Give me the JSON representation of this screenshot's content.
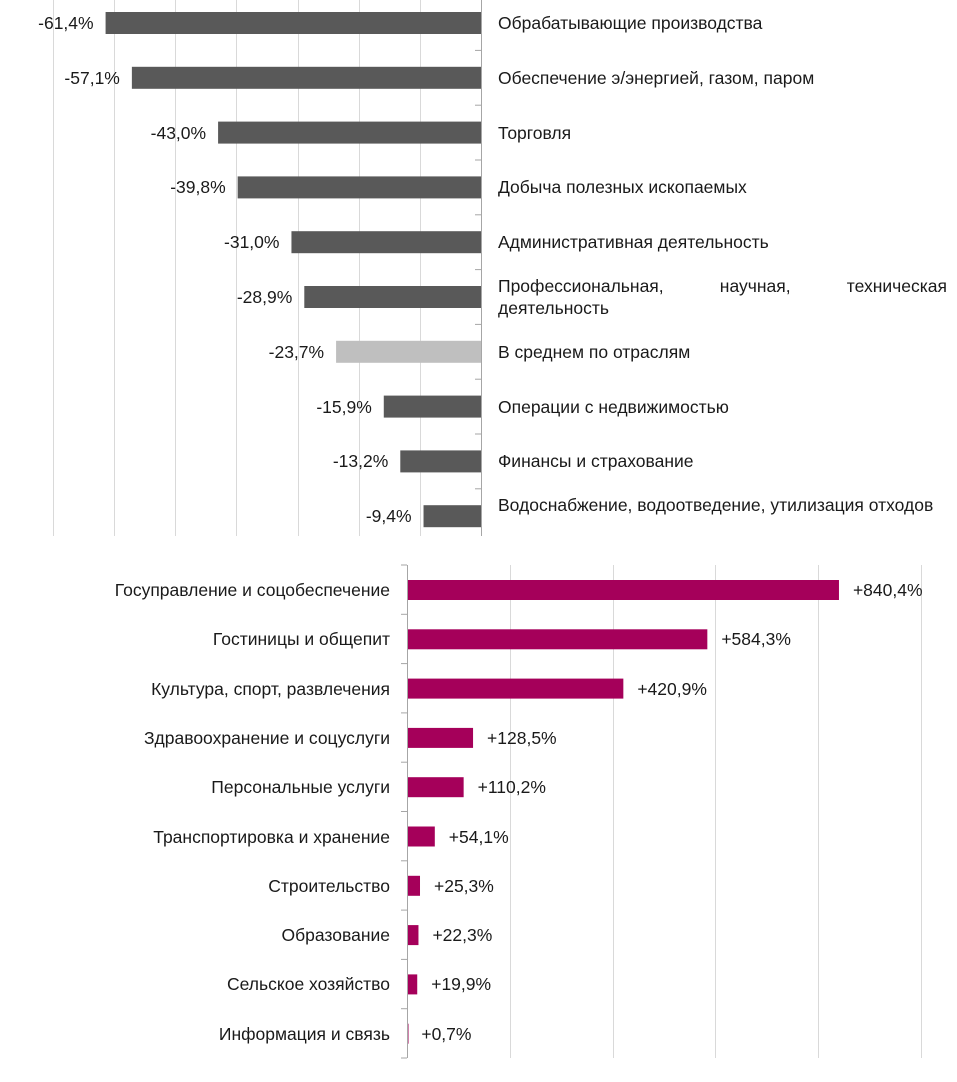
{
  "chart_data": [
    {
      "type": "bar",
      "orientation": "horizontal",
      "categories": [
        "Обрабатывающие производства",
        "Обеспечение э/энергией, газом, паром",
        "Торговля",
        "Добыча полезных ископаемых",
        "Административная деятельность",
        "Профессиональная, научная, техническая деятельность",
        "В среднем по отраслям",
        "Операции с недвижимостью",
        "Финансы и страхование",
        "Водоснабжение, водоотведение, утилизация отходов"
      ],
      "values": [
        -61.4,
        -57.1,
        -43.0,
        -39.8,
        -31.0,
        -28.9,
        -23.7,
        -15.9,
        -13.2,
        -9.4
      ],
      "data_labels": [
        "-61,4%",
        "-57,1%",
        "-43,0%",
        "-39,8%",
        "-31,0%",
        "-28,9%",
        "-23,7%",
        "-15,9%",
        "-13,2%",
        "-9,4%"
      ],
      "xlim": [
        -70,
        0
      ],
      "grid": true,
      "colors": {
        "bar": "#595959",
        "highlight": "#bfbfbf",
        "grid": "#d9d9d9"
      },
      "highlight_index": 6
    },
    {
      "type": "bar",
      "orientation": "horizontal",
      "categories": [
        "Госуправление и соцобеспечение",
        "Гостиницы и общепит",
        "Культура, спорт, развлечения",
        "Здравоохранение и соцуслуги",
        "Персональные услуги",
        "Транспортировка и хранение",
        "Строительство",
        "Образование",
        "Сельское хозяйство",
        "Информация и связь"
      ],
      "values": [
        840.4,
        584.3,
        420.9,
        128.5,
        110.2,
        54.1,
        25.3,
        22.3,
        19.9,
        0.7
      ],
      "data_labels": [
        "+840,4%",
        "+584,3%",
        "+420,9%",
        "+128,5%",
        "+110,2%",
        "+54,1%",
        "+25,3%",
        "+22,3%",
        "+19,9%",
        "+0,7%"
      ],
      "xlim": [
        0,
        1000
      ],
      "grid": true,
      "colors": {
        "bar": "#a5005a",
        "grid": "#d9d9d9"
      }
    }
  ]
}
